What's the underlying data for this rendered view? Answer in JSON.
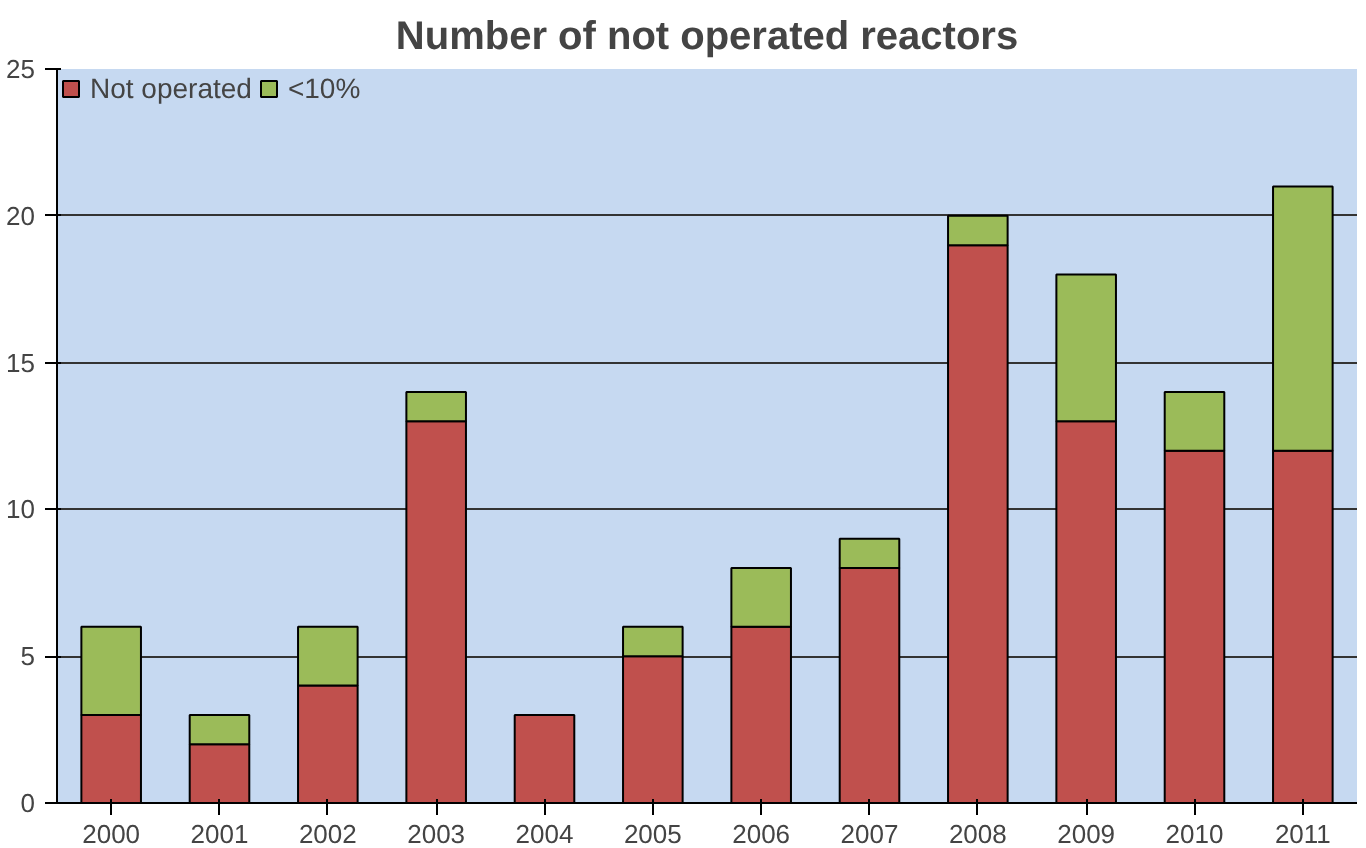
{
  "chart_data": {
    "type": "bar",
    "title": "Number of not operated reactors",
    "categories": [
      "2000",
      "2001",
      "2002",
      "2003",
      "2004",
      "2005",
      "2006",
      "2007",
      "2008",
      "2009",
      "2010",
      "2011"
    ],
    "stacked": true,
    "series": [
      {
        "name": "Not operated",
        "color": "#c0504d",
        "values": [
          3,
          2,
          4,
          13,
          3,
          5,
          6,
          8,
          19,
          13,
          12,
          12
        ]
      },
      {
        "name": "<10%",
        "color": "#9bbb59",
        "values": [
          3,
          1,
          2,
          1,
          0,
          1,
          2,
          1,
          1,
          5,
          2,
          9
        ]
      }
    ],
    "ylim": [
      0,
      25
    ],
    "yticks": [
      0,
      5,
      10,
      15,
      20,
      25
    ],
    "grid": "y",
    "legend": "top left"
  }
}
